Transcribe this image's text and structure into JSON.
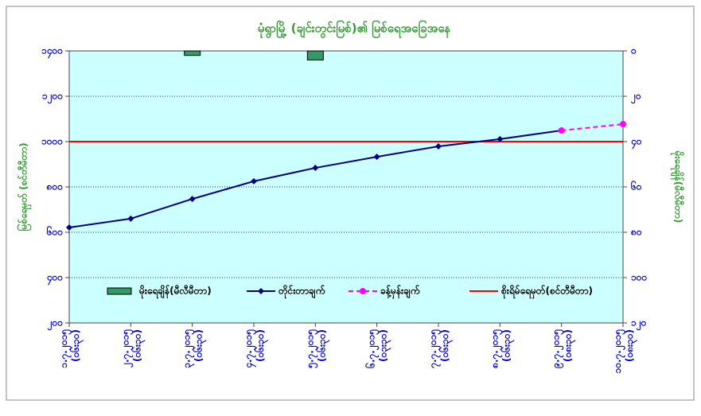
{
  "chart_data": {
    "type": "line",
    "title": "မုံရွာမြို့ (ချင်းတွင်းမြစ်)၏ မြစ်ရေအခြေအနေ",
    "y_label": "မြစ်ရေမှတ် (စင်တီမီတာ)",
    "y2_label": "မိုးရေချိန်(မီလီမီတာ)",
    "categories": [
      "၁.၇.၂၀၁၅ (၀၆း၃၀)",
      "၂.၇.၂၀၁၅ (၀၆း၃၀)",
      "၃.၇.၂၀၁၅ (၀၆း၃၀)",
      "၄.၇.၂၀၁၅ (၀၆း၃၀)",
      "၅.၇.၂၀၁၅ (၀၆း၃၀)",
      "၆.၇.၂၀၁၅ (၀၃း၃၀)",
      "၇.၇.၂၀၁၅ (၀၆း၃၀)",
      "၈.၇.၂၀၁၅ (၀၆း၃၀)",
      "၉.၇.၂၀၁၅ (၀၈း၃၀)",
      "၁၀.၇.၂၀၁၅ (၀၈း၃၀)"
    ],
    "series": [
      {
        "name": "မိုးရေချိန်(မီလီမီတာ)",
        "kind": "bar",
        "axis": "y2",
        "color": "#339966",
        "values": [
          null,
          null,
          2,
          null,
          4,
          null,
          null,
          null,
          null,
          null
        ]
      },
      {
        "name": "တိုင်းတာချက်",
        "kind": "line",
        "color": "#000080",
        "dashed": false,
        "values": [
          621,
          660,
          747,
          825,
          884,
          933,
          979,
          1011,
          1049,
          null
        ]
      },
      {
        "name": "ခန့်မှန်းချက်",
        "kind": "line",
        "color": "#ff00ff",
        "dashed": true,
        "values": [
          null,
          null,
          null,
          null,
          null,
          null,
          null,
          null,
          1049,
          1077
        ]
      }
    ],
    "reference_line": {
      "name": "စိုးရိမ်ရေမှတ်(စင်တီမီတာ)",
      "value": 1000,
      "color": "#ff0000"
    },
    "ylim": [
      200,
      1400
    ],
    "yticks": [
      {
        "value": 200,
        "label": "၂၀၀"
      },
      {
        "value": 400,
        "label": "၄၀၀"
      },
      {
        "value": 600,
        "label": "၆၀၀"
      },
      {
        "value": 800,
        "label": "၈၀၀"
      },
      {
        "value": 1000,
        "label": "၁၀၀၀"
      },
      {
        "value": 1200,
        "label": "၁၂၀၀"
      },
      {
        "value": 1400,
        "label": "၁၄၀၀"
      }
    ],
    "y2lim": [
      0,
      120
    ],
    "y2ticks": [
      {
        "value": 0,
        "label": "၀"
      },
      {
        "value": 20,
        "label": "၂၀"
      },
      {
        "value": 40,
        "label": "၄၀"
      },
      {
        "value": 60,
        "label": "၆၀"
      },
      {
        "value": 80,
        "label": "၈၀"
      },
      {
        "value": 100,
        "label": "၁၀၀"
      },
      {
        "value": 120,
        "label": "၁၂၀"
      }
    ],
    "y2_inverted": true,
    "grid": true
  }
}
